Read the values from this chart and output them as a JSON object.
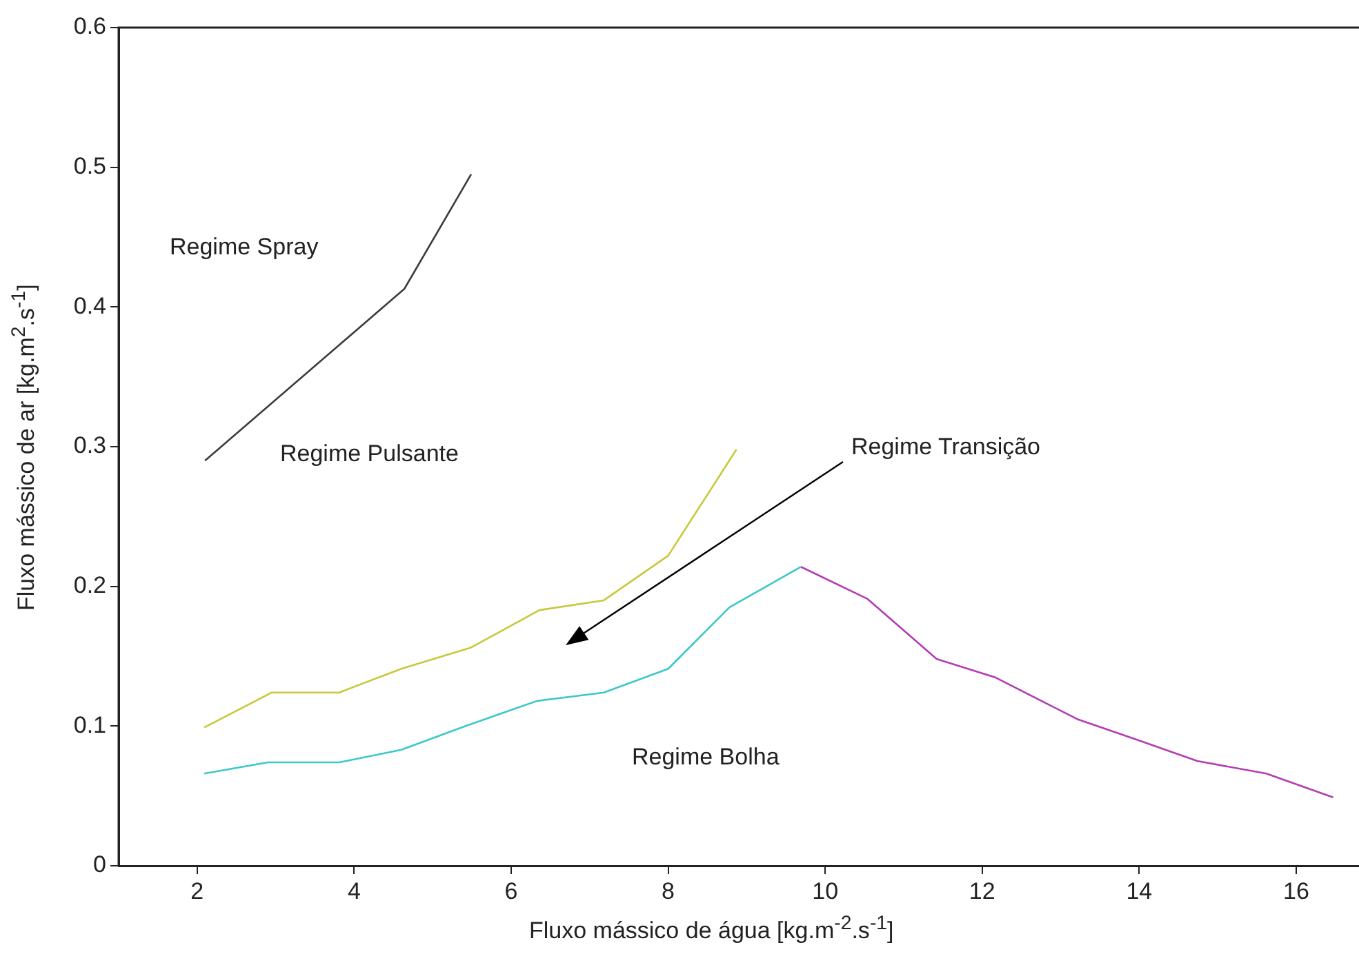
{
  "chart_data": {
    "type": "line",
    "xlabel": "Fluxo mássico de água [kg.m$^{-2}$.s$^{-1}$]",
    "ylabel": "Fluxo mássico de ar [kg.m$^{2}$.s$^{-1}$]",
    "xlim": [
      1,
      16.8
    ],
    "xticks": [
      2,
      4,
      6,
      8,
      10,
      12,
      14,
      16
    ],
    "ylim": [
      0,
      0.6
    ],
    "yticks": [
      0,
      0.1,
      0.2,
      0.3,
      0.4,
      0.5,
      0.6
    ],
    "legend": false,
    "marker": "none",
    "line_style": "solid",
    "series": [
      {
        "color": "#3c3c3c",
        "x": [
          2.1,
          4.64,
          5.49
        ],
        "values": [
          0.29,
          0.413,
          0.495
        ]
      },
      {
        "color": "#c8c83c",
        "x": [
          2.09,
          2.95,
          3.81,
          4.6,
          5.48,
          6.36,
          7.18,
          8.0,
          8.87
        ],
        "values": [
          0.099,
          0.124,
          0.124,
          0.141,
          0.156,
          0.183,
          0.19,
          0.222,
          0.298
        ]
      },
      {
        "color": "#3cc8c8",
        "x": [
          2.09,
          2.9,
          3.81,
          4.6,
          5.42,
          6.33,
          7.18,
          8.0,
          8.78,
          9.69
        ],
        "values": [
          0.066,
          0.074,
          0.074,
          0.083,
          0.1,
          0.118,
          0.124,
          0.141,
          0.185,
          0.214
        ]
      },
      {
        "color": "#b43cb4",
        "x": [
          9.69,
          10.54,
          11.42,
          12.16,
          13.21,
          13.98,
          14.74,
          15.62,
          16.47
        ],
        "values": [
          0.214,
          0.191,
          0.148,
          0.135,
          0.105,
          0.09,
          0.075,
          0.066,
          0.049
        ]
      }
    ],
    "annotations": [
      "Regime Spray",
      "Regime Pulsante",
      "Regime Transição",
      "Regime Bolha"
    ]
  }
}
